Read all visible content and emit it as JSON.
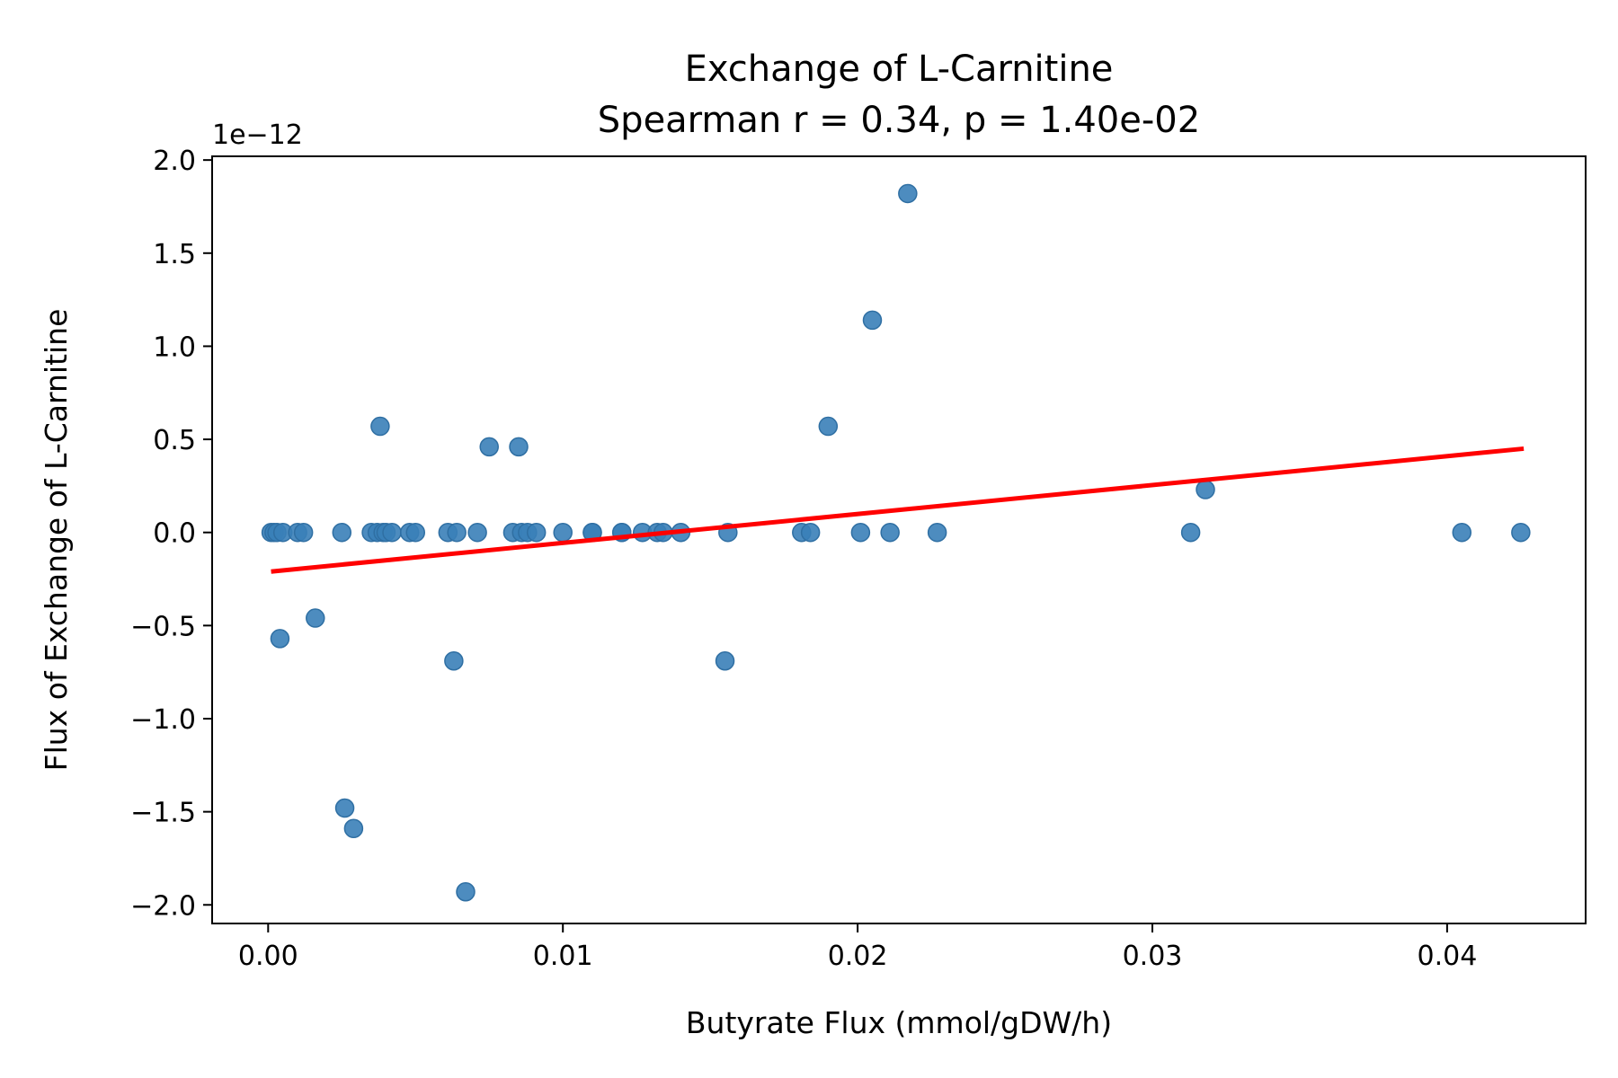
{
  "chart_data": {
    "type": "scatter",
    "title": "Exchange of L-Carnitine",
    "subtitle": "Spearman r = 0.34, p = 1.40e-02",
    "xlabel": "Butyrate Flux (mmol/gDW/h)",
    "ylabel": "Flux of Exchange of L-Carnitine",
    "y_offset_label": "1e−12",
    "xlim": [
      -0.0019,
      0.0447
    ],
    "ylim": [
      -2.1,
      2.02
    ],
    "x_ticks": [
      0.0,
      0.01,
      0.02,
      0.03,
      0.04
    ],
    "x_tick_labels": [
      "0.00",
      "0.01",
      "0.02",
      "0.03",
      "0.04"
    ],
    "y_ticks": [
      -2.0,
      -1.5,
      -1.0,
      -0.5,
      0.0,
      0.5,
      1.0,
      1.5,
      2.0
    ],
    "y_tick_labels": [
      "−2.0",
      "−1.5",
      "−1.0",
      "−0.5",
      "0.0",
      "0.5",
      "1.0",
      "1.5",
      "2.0"
    ],
    "grid": false,
    "point_color": "#3a7fb8",
    "line_color": "#ff0000",
    "series": [
      {
        "x": [
          0.0001,
          0.0002,
          0.0003,
          0.0005,
          0.001,
          0.0012,
          0.0025,
          0.0035,
          0.0037,
          0.0039,
          0.004,
          0.0042,
          0.0048,
          0.005,
          0.0061,
          0.0064,
          0.0071,
          0.0083,
          0.0086,
          0.0088,
          0.0091,
          0.01,
          0.011,
          0.011,
          0.012,
          0.012,
          0.0127,
          0.0132,
          0.0134,
          0.014,
          0.0156,
          0.0181,
          0.0184,
          0.0201,
          0.0211,
          0.0227,
          0.0313,
          0.0405,
          0.0425,
          0.0004,
          0.0016,
          0.0038,
          0.0075,
          0.0085,
          0.0026,
          0.0029,
          0.0063,
          0.0067,
          0.0155,
          0.019,
          0.0205,
          0.0217,
          0.0318
        ],
        "y": [
          0,
          0,
          0,
          0,
          0,
          0,
          0,
          0,
          0,
          0,
          0,
          0,
          0,
          0,
          0,
          0,
          0,
          0,
          0,
          0,
          0,
          0,
          0,
          0,
          0,
          0,
          0,
          0,
          0,
          0,
          0,
          0,
          0,
          0,
          0,
          0,
          0,
          0,
          0,
          -0.57,
          -0.46,
          0.57,
          0.46,
          0.46,
          -1.48,
          -1.59,
          -0.69,
          -1.93,
          -0.69,
          0.57,
          1.14,
          1.82,
          0.23
        ]
      }
    ],
    "fit_line": {
      "x": [
        0.0001,
        0.0426
      ],
      "y": [
        -0.21,
        0.45
      ]
    }
  }
}
